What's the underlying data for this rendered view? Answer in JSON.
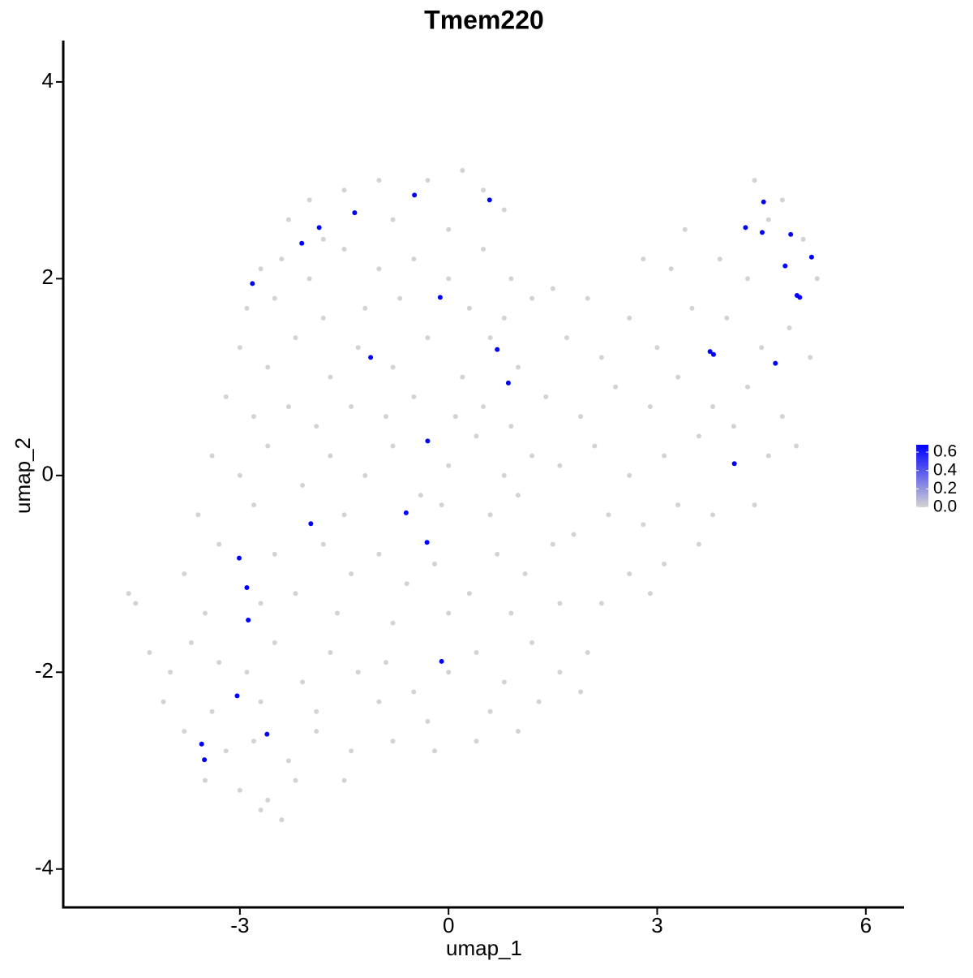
{
  "chart_data": {
    "type": "scatter",
    "title": "Tmem220",
    "x_label": "umap_1",
    "y_label": "umap_2",
    "xlim": [
      -5.54,
      6.55
    ],
    "ylim": [
      -4.39,
      4.42
    ],
    "xticks": [
      -3,
      0,
      3,
      6
    ],
    "yticks": [
      -4,
      -2,
      0,
      2,
      4
    ],
    "grid": false,
    "colorbar": {
      "lim": [
        0,
        0.68
      ],
      "colors": [
        "#d3d3d3",
        "#0000ff"
      ],
      "ticks": [
        {
          "value": 0,
          "label": "0.0"
        },
        0.2,
        0.4,
        0.6
      ]
    },
    "series": [
      {
        "expression": 0,
        "x": [
          -1.5,
          -1,
          -0.3,
          0.2,
          0.5,
          -2,
          -2.3,
          -1.8,
          -0.8,
          0,
          0.8,
          -2.7,
          -2.4,
          -2,
          -1.5,
          -1,
          -0.5,
          0,
          0.5,
          0.9,
          -2.9,
          -2.5,
          -1.8,
          -1.2,
          -0.7,
          0.3,
          0.8,
          1.2,
          -3.0,
          -2.6,
          -2.2,
          -1.7,
          -1.3,
          -0.8,
          -0.3,
          0.2,
          0.6,
          1.0,
          -3.2,
          -2.8,
          -2.3,
          -1.9,
          -1.4,
          -0.9,
          -0.5,
          0.1,
          0.5,
          0.9,
          -3.4,
          -3.0,
          -2.6,
          -2.1,
          -1.7,
          -1.2,
          -0.8,
          -0.4,
          0.0,
          0.4,
          0.8,
          1.2,
          -3.6,
          -2.8,
          -1.5,
          -0.1,
          0.6,
          1.0,
          -3.8,
          -3.3,
          -2.5,
          -2.2,
          -1.8,
          -1.4,
          -1.0,
          -0.6,
          -0.2,
          0.3,
          0.7,
          1.1,
          1.5,
          -4.6,
          -4.5,
          -3.5,
          -2.7,
          -1.6,
          -0.8,
          0.0,
          0.9,
          1.6,
          -4.3,
          -4.0,
          -3.7,
          -3.3,
          -2.9,
          -2.5,
          -2.1,
          -1.7,
          -1.3,
          -0.9,
          -0.5,
          0.0,
          0.4,
          0.8,
          1.2,
          1.6,
          2.0,
          -4.1,
          -3.4,
          -2.7,
          -1.9,
          -1.0,
          -0.3,
          0.6,
          1.3,
          1.9,
          -3.8,
          -3.2,
          -2.8,
          -2.3,
          -1.9,
          -1.4,
          -0.8,
          -0.2,
          0.4,
          1.0,
          -3.5,
          -3.0,
          -2.6,
          -2.2,
          -1.5,
          -2.4,
          -2.7,
          1.5,
          2.0,
          1.7,
          2.2,
          2.6,
          2.8,
          3.2,
          3.4,
          3.0,
          3.5,
          3.9,
          4.0,
          4.3,
          4.6,
          4.4,
          4.8,
          5.1,
          5.3,
          4.9,
          5.2,
          4.5,
          1.4,
          1.9,
          2.4,
          2.9,
          3.3,
          3.8,
          4.3,
          4.8,
          5.0,
          1.6,
          2.1,
          2.6,
          3.1,
          3.6,
          4.1,
          4.6,
          4.4,
          3.8,
          3.3,
          2.8,
          2.3,
          1.8,
          3.6,
          3.1,
          2.6,
          2.2,
          2.9
        ],
        "y": [
          2.9,
          3.0,
          3.0,
          3.1,
          2.9,
          2.8,
          2.6,
          2.4,
          2.6,
          2.5,
          2.7,
          2.1,
          2.2,
          2.0,
          2.3,
          2.1,
          2.2,
          2.0,
          2.3,
          2.0,
          1.7,
          1.8,
          1.6,
          1.7,
          1.8,
          1.7,
          1.6,
          1.8,
          1.3,
          1.1,
          1.4,
          1.0,
          1.3,
          1.1,
          1.4,
          1.0,
          1.4,
          1.1,
          0.8,
          0.6,
          0.7,
          0.5,
          0.7,
          0.6,
          0.8,
          0.6,
          0.7,
          0.5,
          0.2,
          0.0,
          0.3,
          -0.1,
          0.2,
          0.0,
          0.3,
          -0.2,
          0.1,
          0.4,
          0.0,
          0.2,
          -0.4,
          -0.3,
          -0.4,
          -0.3,
          -0.4,
          -0.2,
          -1.0,
          -0.7,
          -0.8,
          -1.2,
          -0.7,
          -1.0,
          -0.8,
          -1.1,
          -0.9,
          -1.2,
          -0.8,
          -1.0,
          -0.7,
          -1.2,
          -1.3,
          -1.4,
          -1.3,
          -1.4,
          -1.5,
          -1.4,
          -1.4,
          -1.3,
          -1.8,
          -2.0,
          -1.7,
          -1.9,
          -2.0,
          -1.7,
          -2.1,
          -1.8,
          -2.0,
          -1.9,
          -2.2,
          -2.0,
          -1.8,
          -2.1,
          -1.7,
          -2.0,
          -1.8,
          -2.3,
          -2.4,
          -2.3,
          -2.4,
          -2.3,
          -2.5,
          -2.4,
          -2.3,
          -2.2,
          -2.6,
          -2.8,
          -2.7,
          -2.9,
          -2.6,
          -2.8,
          -2.7,
          -2.8,
          -2.7,
          -2.6,
          -3.1,
          -3.2,
          -3.3,
          -3.1,
          -3.1,
          -3.5,
          -3.4,
          1.9,
          1.8,
          1.4,
          1.2,
          1.6,
          2.2,
          2.1,
          2.5,
          1.3,
          1.7,
          2.2,
          1.6,
          2.0,
          2.6,
          3.0,
          2.8,
          2.4,
          2.0,
          1.5,
          1.2,
          1.3,
          0.8,
          0.6,
          0.9,
          0.7,
          1.0,
          0.7,
          0.9,
          0.6,
          0.3,
          0.1,
          0.3,
          0.0,
          0.2,
          0.4,
          0.5,
          0.2,
          -0.3,
          -0.4,
          -0.3,
          -0.5,
          -0.4,
          -0.6,
          -0.7,
          -0.9,
          -1.0,
          -1.3,
          -1.2
        ]
      },
      {
        "expression": 0.68,
        "x": [
          -0.49,
          0.59,
          -1.35,
          -1.86,
          -2.11,
          -2.82,
          -0.12,
          0.7,
          -1.12,
          0.86,
          -0.3,
          -0.61,
          -1.98,
          -0.31,
          -3.01,
          -2.9,
          -2.88,
          -0.1,
          -3.04,
          -2.61,
          -3.55,
          -3.51,
          4.53,
          4.27,
          4.51,
          4.92,
          5.22,
          4.84,
          5.01,
          5.05,
          3.76,
          3.81,
          4.7,
          4.11
        ],
        "y": [
          2.85,
          2.8,
          2.67,
          2.52,
          2.36,
          1.95,
          1.81,
          1.28,
          1.2,
          0.94,
          0.35,
          -0.38,
          -0.49,
          -0.68,
          -0.84,
          -1.14,
          -1.47,
          -1.89,
          -2.24,
          -2.63,
          -2.73,
          -2.89,
          2.78,
          2.52,
          2.47,
          2.45,
          2.22,
          2.13,
          1.83,
          1.81,
          1.26,
          1.23,
          1.14,
          0.12
        ]
      }
    ]
  }
}
